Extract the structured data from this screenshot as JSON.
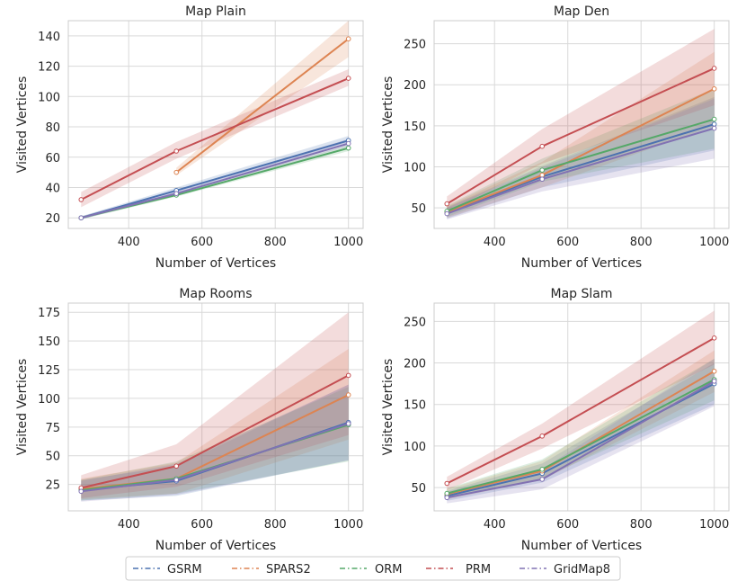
{
  "colors": {
    "GSRM": "#4c72b0",
    "SPARS2": "#dd8452",
    "ORM": "#55a868",
    "PRM": "#c44e52",
    "GridMap8": "#8172b3"
  },
  "legend": [
    "GSRM",
    "SPARS2",
    "ORM",
    "PRM",
    "GridMap8"
  ],
  "chart_data": [
    {
      "type": "line",
      "title": "Map Plain",
      "xlabel": "Number of Vertices",
      "ylabel": "Visited Vertices",
      "xlim": [
        235,
        1040
      ],
      "ylim": [
        13,
        150
      ],
      "xticks": [
        400,
        600,
        800,
        1000
      ],
      "yticks": [
        20,
        40,
        60,
        80,
        100,
        120,
        140
      ],
      "series": [
        {
          "name": "GSRM",
          "x": [
            270,
            530,
            1000
          ],
          "values": [
            20,
            38,
            71
          ],
          "lower": [
            19,
            36,
            69
          ],
          "upper": [
            21,
            40,
            74
          ]
        },
        {
          "name": "SPARS2",
          "x": [
            530,
            1000
          ],
          "values": [
            50,
            138
          ],
          "lower": [
            48,
            126
          ],
          "upper": [
            53,
            150
          ]
        },
        {
          "name": "ORM",
          "x": [
            270,
            530,
            1000
          ],
          "values": [
            20,
            35,
            66
          ],
          "lower": [
            19,
            34,
            64
          ],
          "upper": [
            21,
            36,
            68
          ]
        },
        {
          "name": "PRM",
          "x": [
            270,
            530,
            1000
          ],
          "values": [
            32,
            64,
            112
          ],
          "lower": [
            27,
            59,
            107
          ],
          "upper": [
            37,
            70,
            118
          ]
        },
        {
          "name": "GridMap8",
          "x": [
            270,
            530,
            1000
          ],
          "values": [
            20,
            36,
            69
          ],
          "lower": [
            19,
            35,
            67
          ],
          "upper": [
            21,
            38,
            72
          ]
        }
      ]
    },
    {
      "type": "line",
      "title": "Map Den",
      "xlabel": "Number of Vertices",
      "ylabel": "Visited Vertices",
      "xlim": [
        235,
        1040
      ],
      "ylim": [
        25,
        278
      ],
      "xticks": [
        400,
        600,
        800,
        1000
      ],
      "yticks": [
        50,
        100,
        150,
        200,
        250
      ],
      "series": [
        {
          "name": "GSRM",
          "x": [
            270,
            530,
            1000
          ],
          "values": [
            44,
            88,
            152
          ],
          "lower": [
            37,
            75,
            120
          ],
          "upper": [
            51,
            101,
            185
          ]
        },
        {
          "name": "SPARS2",
          "x": [
            270,
            530,
            1000
          ],
          "values": [
            45,
            90,
            195
          ],
          "lower": [
            38,
            75,
            150
          ],
          "upper": [
            52,
            106,
            240
          ]
        },
        {
          "name": "ORM",
          "x": [
            270,
            530,
            1000
          ],
          "values": [
            46,
            96,
            158
          ],
          "lower": [
            39,
            82,
            122
          ],
          "upper": [
            53,
            110,
            195
          ]
        },
        {
          "name": "PRM",
          "x": [
            270,
            530,
            1000
          ],
          "values": [
            55,
            125,
            220
          ],
          "lower": [
            45,
            104,
            175
          ],
          "upper": [
            64,
            146,
            268
          ]
        },
        {
          "name": "GridMap8",
          "x": [
            270,
            530,
            1000
          ],
          "values": [
            43,
            85,
            147
          ],
          "lower": [
            36,
            70,
            110
          ],
          "upper": [
            50,
            99,
            183
          ]
        }
      ]
    },
    {
      "type": "line",
      "title": "Map Rooms",
      "xlabel": "Number of Vertices",
      "ylabel": "Visited Vertices",
      "xlim": [
        235,
        1040
      ],
      "ylim": [
        2,
        183
      ],
      "xticks": [
        400,
        600,
        800,
        1000
      ],
      "yticks": [
        25,
        50,
        75,
        100,
        125,
        150,
        175
      ],
      "series": [
        {
          "name": "GSRM",
          "x": [
            270,
            530,
            1000
          ],
          "values": [
            20,
            28,
            79
          ],
          "lower": [
            11,
            15,
            46
          ],
          "upper": [
            29,
            41,
            112
          ]
        },
        {
          "name": "SPARS2",
          "x": [
            270,
            530,
            1000
          ],
          "values": [
            21,
            30,
            103
          ],
          "lower": [
            12,
            17,
            64
          ],
          "upper": [
            30,
            44,
            143
          ]
        },
        {
          "name": "ORM",
          "x": [
            270,
            530,
            1000
          ],
          "values": [
            20,
            30,
            77
          ],
          "lower": [
            11,
            17,
            45
          ],
          "upper": [
            29,
            45,
            110
          ]
        },
        {
          "name": "PRM",
          "x": [
            270,
            530,
            1000
          ],
          "values": [
            22,
            41,
            120
          ],
          "lower": [
            13,
            23,
            68
          ],
          "upper": [
            33,
            60,
            175
          ]
        },
        {
          "name": "GridMap8",
          "x": [
            270,
            530,
            1000
          ],
          "values": [
            19,
            29,
            78
          ],
          "lower": [
            10,
            16,
            46
          ],
          "upper": [
            28,
            43,
            112
          ]
        }
      ]
    },
    {
      "type": "line",
      "title": "Map Slam",
      "xlabel": "Number of Vertices",
      "ylabel": "Visited Vertices",
      "xlim": [
        235,
        1040
      ],
      "ylim": [
        22,
        272
      ],
      "xticks": [
        400,
        600,
        800,
        1000
      ],
      "yticks": [
        50,
        100,
        150,
        200,
        250
      ],
      "series": [
        {
          "name": "GSRM",
          "x": [
            270,
            530,
            1000
          ],
          "values": [
            40,
            67,
            175
          ],
          "lower": [
            34,
            56,
            150
          ],
          "upper": [
            46,
            79,
            200
          ]
        },
        {
          "name": "SPARS2",
          "x": [
            270,
            530,
            1000
          ],
          "values": [
            42,
            70,
            190
          ],
          "lower": [
            36,
            59,
            165
          ],
          "upper": [
            48,
            82,
            215
          ]
        },
        {
          "name": "ORM",
          "x": [
            270,
            530,
            1000
          ],
          "values": [
            43,
            72,
            180
          ],
          "lower": [
            37,
            61,
            155
          ],
          "upper": [
            49,
            84,
            205
          ]
        },
        {
          "name": "PRM",
          "x": [
            270,
            530,
            1000
          ],
          "values": [
            55,
            112,
            230
          ],
          "lower": [
            47,
            97,
            198
          ],
          "upper": [
            63,
            127,
            263
          ]
        },
        {
          "name": "GridMap8",
          "x": [
            270,
            530,
            1000
          ],
          "values": [
            38,
            60,
            178
          ],
          "lower": [
            31,
            48,
            148
          ],
          "upper": [
            45,
            72,
            205
          ]
        }
      ]
    }
  ]
}
